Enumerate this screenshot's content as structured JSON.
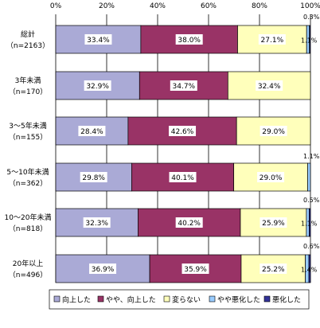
{
  "chart_data": {
    "type": "bar",
    "orientation": "horizontal",
    "stacked": true,
    "percent": true,
    "title": "",
    "xlabel": "",
    "ylabel": "",
    "xlim": [
      0,
      100
    ],
    "x_ticks": [
      "0%",
      "20%",
      "40%",
      "60%",
      "80%",
      "100%"
    ],
    "legend_position": "bottom",
    "grid": true,
    "categories": [
      {
        "label": "総計",
        "n": "（n=2163）"
      },
      {
        "label": "3年未満",
        "n": "（n=170）"
      },
      {
        "label": "3～5年未満",
        "n": "（n=155）"
      },
      {
        "label": "5～10年未満",
        "n": "（n=362）"
      },
      {
        "label": "10～20年未満",
        "n": "（n=818）"
      },
      {
        "label": "20年以上",
        "n": "（n=496）"
      }
    ],
    "series": [
      {
        "name": "向上した",
        "color": "#aaaad6",
        "values": [
          33.4,
          32.9,
          28.4,
          29.8,
          32.3,
          36.9
        ],
        "labels": [
          "33.4%",
          "32.9%",
          "28.4%",
          "29.8%",
          "32.3%",
          "36.9%"
        ]
      },
      {
        "name": "やや、向上した",
        "color": "#993366",
        "values": [
          38.0,
          34.7,
          42.6,
          40.1,
          40.2,
          35.9
        ],
        "labels": [
          "38.0%",
          "34.7%",
          "42.6%",
          "40.1%",
          "40.2%",
          "35.9%"
        ]
      },
      {
        "name": "変らない",
        "color": "#ffffbb",
        "values": [
          27.1,
          32.4,
          29.0,
          29.0,
          25.9,
          25.2
        ],
        "labels": [
          "27.1%",
          "32.4%",
          "29.0%",
          "29.0%",
          "25.9%",
          "25.2%"
        ]
      },
      {
        "name": "やや悪化した",
        "color": "#99ccff",
        "values": [
          1.1,
          0.0,
          0.0,
          1.1,
          1.1,
          1.4
        ],
        "labels": [
          "1.1%",
          "",
          "",
          "1.1%",
          "1.1%",
          "1.4%"
        ]
      },
      {
        "name": "悪化した",
        "color": "#333399",
        "values": [
          0.3,
          0.0,
          0.0,
          0.0,
          0.5,
          0.6
        ],
        "labels": [
          "0.3%",
          "",
          "",
          "",
          "0.5%",
          "0.6%"
        ]
      }
    ]
  }
}
